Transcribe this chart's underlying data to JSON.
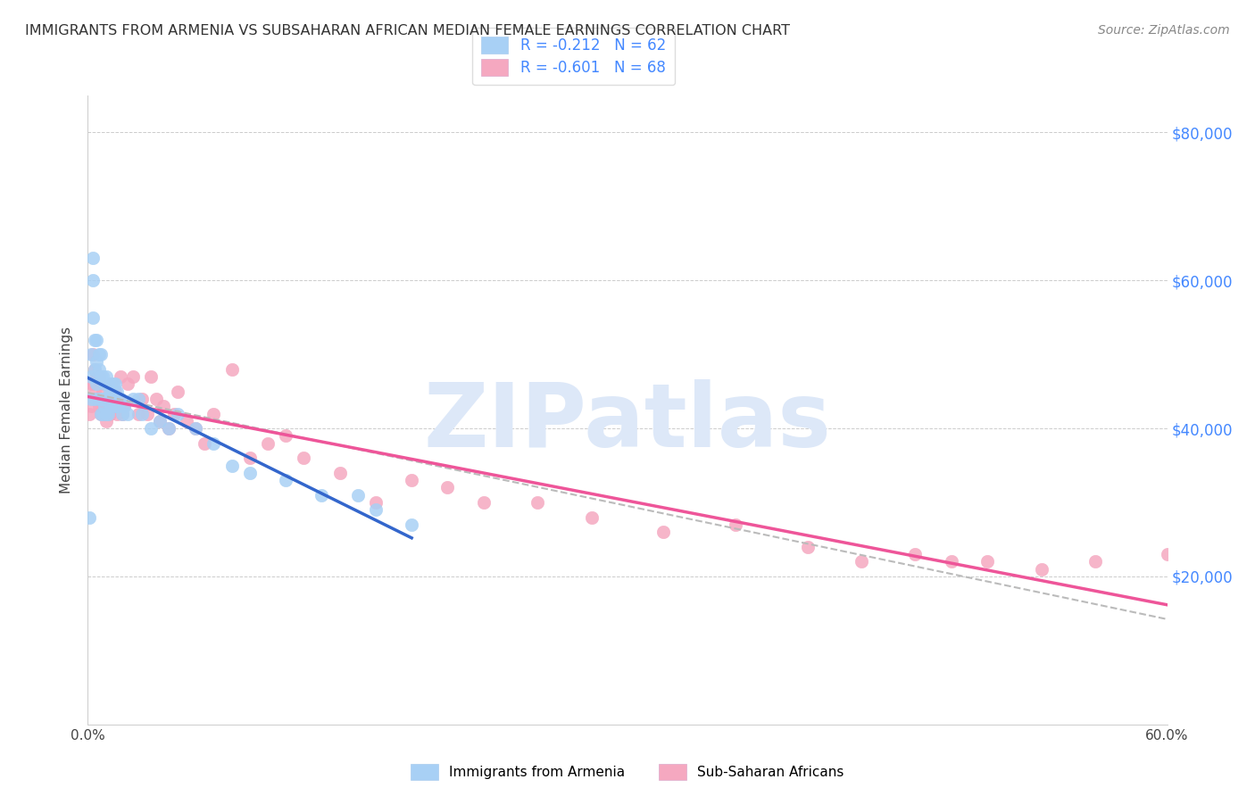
{
  "title": "IMMIGRANTS FROM ARMENIA VS SUBSAHARAN AFRICAN MEDIAN FEMALE EARNINGS CORRELATION CHART",
  "source": "Source: ZipAtlas.com",
  "ylabel": "Median Female Earnings",
  "R_armenia": -0.212,
  "N_armenia": 62,
  "R_subsaharan": -0.601,
  "N_subsaharan": 68,
  "xlim": [
    0.0,
    0.6
  ],
  "ylim": [
    0,
    85000
  ],
  "yticks": [
    0,
    20000,
    40000,
    60000,
    80000
  ],
  "xticks": [
    0.0,
    0.1,
    0.2,
    0.3,
    0.4,
    0.5,
    0.6
  ],
  "xtick_labels": [
    "0.0%",
    "",
    "",
    "",
    "",
    "",
    "60.0%"
  ],
  "ytick_labels": [
    "",
    "$20,000",
    "$40,000",
    "$60,000",
    "$80,000"
  ],
  "color_armenia": "#a8d0f5",
  "color_subsaharan": "#f5a8c0",
  "line_color_armenia": "#3366cc",
  "line_color_subsaharan": "#ee5599",
  "line_color_dashed": "#bbbbbb",
  "background_color": "#ffffff",
  "watermark_color": "#dde8f8",
  "title_color": "#333333",
  "axis_tick_color": "#5599ff",
  "armenia_x": [
    0.001,
    0.002,
    0.002,
    0.002,
    0.003,
    0.003,
    0.003,
    0.004,
    0.004,
    0.004,
    0.005,
    0.005,
    0.005,
    0.006,
    0.006,
    0.006,
    0.007,
    0.007,
    0.007,
    0.007,
    0.008,
    0.008,
    0.008,
    0.009,
    0.009,
    0.01,
    0.01,
    0.01,
    0.011,
    0.011,
    0.011,
    0.012,
    0.012,
    0.013,
    0.013,
    0.014,
    0.014,
    0.015,
    0.015,
    0.016,
    0.016,
    0.017,
    0.018,
    0.019,
    0.02,
    0.022,
    0.025,
    0.028,
    0.03,
    0.035,
    0.04,
    0.045,
    0.05,
    0.06,
    0.07,
    0.08,
    0.09,
    0.11,
    0.13,
    0.15,
    0.16,
    0.18
  ],
  "armenia_y": [
    28000,
    50000,
    47000,
    44000,
    63000,
    60000,
    55000,
    52000,
    48000,
    44000,
    52000,
    49000,
    46000,
    50000,
    48000,
    44000,
    50000,
    47000,
    44000,
    42000,
    47000,
    44000,
    42000,
    46000,
    43000,
    47000,
    44000,
    42000,
    46000,
    44000,
    42000,
    45000,
    43000,
    45000,
    43000,
    46000,
    44000,
    46000,
    43000,
    45000,
    43000,
    43000,
    44000,
    42000,
    43000,
    42000,
    44000,
    44000,
    42000,
    40000,
    41000,
    40000,
    42000,
    40000,
    38000,
    35000,
    34000,
    33000,
    31000,
    31000,
    29000,
    27000
  ],
  "subsaharan_x": [
    0.001,
    0.002,
    0.002,
    0.003,
    0.003,
    0.004,
    0.004,
    0.005,
    0.005,
    0.006,
    0.006,
    0.007,
    0.007,
    0.008,
    0.008,
    0.009,
    0.009,
    0.01,
    0.01,
    0.011,
    0.012,
    0.013,
    0.013,
    0.014,
    0.015,
    0.016,
    0.017,
    0.018,
    0.019,
    0.02,
    0.022,
    0.025,
    0.028,
    0.03,
    0.033,
    0.035,
    0.038,
    0.04,
    0.042,
    0.045,
    0.048,
    0.05,
    0.055,
    0.06,
    0.065,
    0.07,
    0.08,
    0.09,
    0.1,
    0.11,
    0.12,
    0.14,
    0.16,
    0.18,
    0.2,
    0.22,
    0.25,
    0.28,
    0.32,
    0.36,
    0.4,
    0.43,
    0.46,
    0.48,
    0.5,
    0.53,
    0.56,
    0.6
  ],
  "subsaharan_y": [
    42000,
    46000,
    43000,
    50000,
    46000,
    48000,
    45000,
    47000,
    44000,
    47000,
    43000,
    46000,
    42000,
    45000,
    43000,
    44000,
    42000,
    43000,
    41000,
    44000,
    42000,
    46000,
    44000,
    43000,
    45000,
    42000,
    44000,
    47000,
    42000,
    43000,
    46000,
    47000,
    42000,
    44000,
    42000,
    47000,
    44000,
    41000,
    43000,
    40000,
    42000,
    45000,
    41000,
    40000,
    38000,
    42000,
    48000,
    36000,
    38000,
    39000,
    36000,
    34000,
    30000,
    33000,
    32000,
    30000,
    30000,
    28000,
    26000,
    27000,
    24000,
    22000,
    23000,
    22000,
    22000,
    21000,
    22000,
    23000
  ]
}
